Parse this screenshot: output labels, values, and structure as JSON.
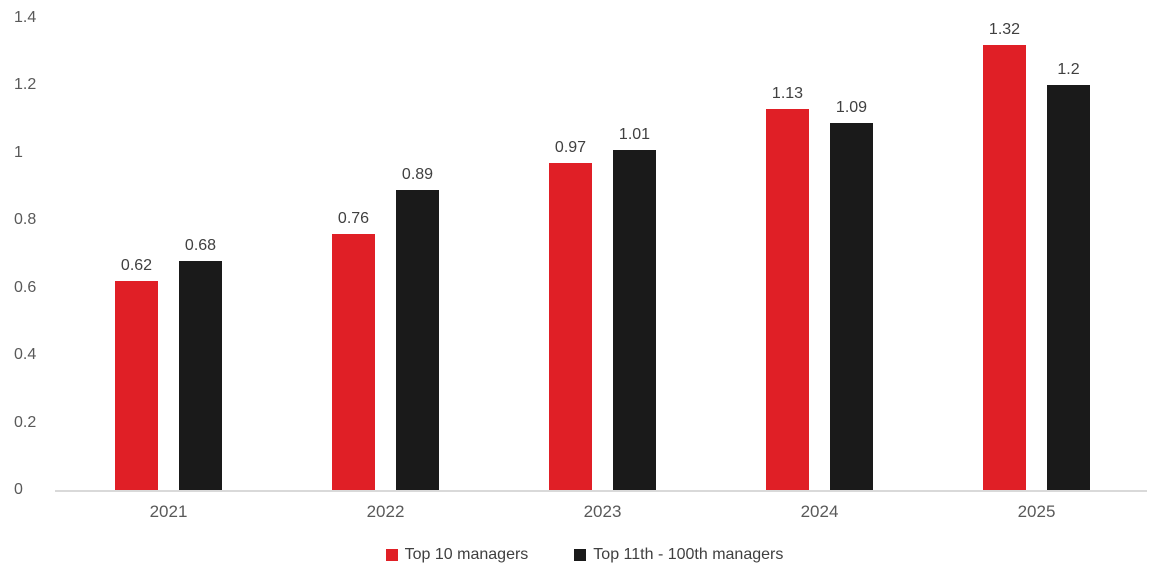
{
  "chart_data": {
    "type": "bar",
    "title": "",
    "categories": [
      "2021",
      "2022",
      "2023",
      "2024",
      "2025"
    ],
    "series": [
      {
        "name": "Top 10 managers",
        "color": "#e01f26",
        "values": [
          0.62,
          0.76,
          0.97,
          1.13,
          1.32
        ]
      },
      {
        "name": "Top 11th - 100th managers",
        "color": "#1a1a1a",
        "values": [
          0.68,
          0.89,
          1.01,
          1.09,
          1.2
        ]
      }
    ],
    "ylim": [
      0,
      1.4
    ],
    "yticks": [
      0,
      0.2,
      0.4,
      0.6,
      0.8,
      1,
      1.2,
      1.4
    ],
    "grid": false,
    "data_labels": true,
    "legend_position": "bottom"
  },
  "colors": {
    "axis_label": "#595959",
    "data_label": "#404040",
    "baseline": "#d9d9d9",
    "background": "#ffffff"
  }
}
